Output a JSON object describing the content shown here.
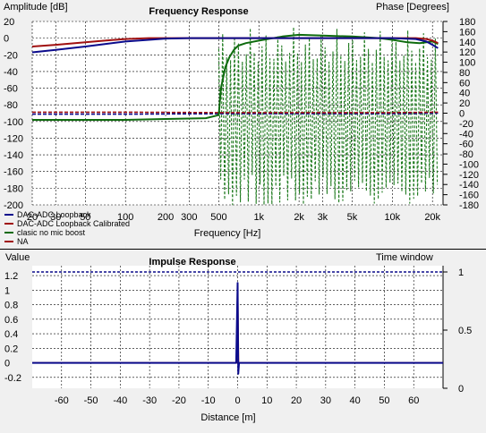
{
  "colors": {
    "background": "#f0f0f0",
    "plot_bg": "#ffffff",
    "grid": "#000000",
    "series_blue": "#0b0b8c",
    "series_red": "#a01010",
    "series_green": "#0e6b0e",
    "series_green_dash": "#1e7a1e",
    "divider": "#000000"
  },
  "chart_data": [
    {
      "type": "line",
      "title": "Frequency Response",
      "ylabel": "Amplitude [dB]",
      "ylabel2": "Phase [Degrees]",
      "xlabel": "Frequency [Hz]",
      "x_scale": "log",
      "xlim": [
        20,
        24000
      ],
      "ylim": [
        -200,
        20
      ],
      "y2lim": [
        -180,
        180
      ],
      "grid": true,
      "legend_position": "bottom-left",
      "x_ticks": [
        20,
        30,
        50,
        100,
        200,
        300,
        500,
        1000,
        2000,
        3000,
        5000,
        10000,
        20000
      ],
      "x_tick_labels": [
        "20",
        "30",
        "50",
        "100",
        "200",
        "300",
        "500",
        "1k",
        "2k",
        "3k",
        "5k",
        "10k",
        "20k"
      ],
      "y_ticks": [
        20,
        0,
        -20,
        -40,
        -60,
        -80,
        -100,
        -120,
        -140,
        -160,
        -180,
        -200
      ],
      "y_tick_labels": [
        "20",
        "0",
        "-20",
        "-40",
        "-60",
        "-80",
        "-100",
        "-120",
        "-140",
        "-160",
        "-180",
        "-200"
      ],
      "y2_ticks": [
        180,
        160,
        140,
        120,
        100,
        80,
        60,
        40,
        20,
        0,
        -20,
        -40,
        -60,
        -80,
        -100,
        -120,
        -140,
        -160,
        -180
      ],
      "y2_tick_labels": [
        "180",
        "160",
        "140",
        "120",
        "100",
        "80",
        "60",
        "40",
        "20",
        "0",
        "-20",
        "-40",
        "-60",
        "-80",
        "-100",
        "-120",
        "-140",
        "-160",
        "-180"
      ],
      "series": [
        {
          "name": "DAC-ADC Loopback",
          "color": "#0b0b8c",
          "amplitude": {
            "x": [
              20,
              30,
              50,
              70,
              100,
              150,
              200,
              300,
              500,
              1000,
              3000,
              10000,
              15000,
              18000,
              20000,
              22000
            ],
            "y": [
              -17,
              -14,
              -10,
              -7,
              -4,
              -2,
              -0.5,
              0,
              0,
              0,
              0,
              0,
              -1,
              -4,
              -8,
              -12
            ]
          },
          "phase": {
            "x": [
              20,
              100,
              500,
              1000,
              10000,
              22000
            ],
            "y": [
              -2,
              -2,
              -1,
              -1,
              -1,
              0
            ]
          }
        },
        {
          "name": "DAC-ADC Loopback Calibrated",
          "color": "#a01010",
          "amplitude": {
            "x": [
              20,
              30,
              50,
              70,
              100,
              150,
              200,
              300,
              1000,
              10000,
              15000,
              18000,
              20000,
              22000
            ],
            "y": [
              -10,
              -8,
              -5,
              -3,
              -1,
              0,
              0,
              0,
              0,
              0,
              0,
              -1,
              -3,
              -6
            ]
          },
          "phase": {
            "x": [
              20,
              100,
              500,
              1000,
              10000,
              22000
            ],
            "y": [
              2,
              2,
              1,
              1,
              1,
              2
            ]
          }
        },
        {
          "name": "clasic no mic boost",
          "color": "#0e6b0e",
          "amplitude": {
            "x": [
              20,
              100,
              200,
              400,
              480,
              500,
              520,
              560,
              600,
              650,
              700,
              800,
              1000,
              1500,
              2000,
              3000,
              5000,
              8000,
              10000,
              13000,
              16000,
              20000,
              22000
            ],
            "y": [
              -98,
              -98,
              -97,
              -96,
              -93,
              -92,
              -60,
              -35,
              -23,
              -14,
              -9,
              -6,
              -3,
              2,
              4,
              3,
              2,
              0,
              -2,
              -5,
              -6,
              -4,
              -7
            ]
          },
          "phase_note": "dense oscillation between -180 and 170 degrees from 500 Hz to 22 kHz"
        },
        {
          "name": "NA",
          "color": "#a01010"
        }
      ]
    },
    {
      "type": "line",
      "title": "Impulse Response",
      "ylabel": "Value",
      "ylabel2": "Time window",
      "xlabel": "Distance [m]",
      "xlim": [
        -70,
        70
      ],
      "ylim": [
        -0.35,
        1.25
      ],
      "y2lim": [
        0,
        1
      ],
      "grid": true,
      "x_ticks": [
        -60,
        -50,
        -40,
        -30,
        -20,
        -10,
        0,
        10,
        20,
        30,
        40,
        50,
        60
      ],
      "x_tick_labels": [
        "-60",
        "-50",
        "-40",
        "-30",
        "-20",
        "-10",
        "0",
        "10",
        "20",
        "30",
        "40",
        "50",
        "60"
      ],
      "y_ticks": [
        1.2,
        1,
        0.8,
        0.6,
        0.4,
        0.2,
        0,
        -0.2
      ],
      "y_tick_labels": [
        "1.2",
        "1",
        "0.8",
        "0.6",
        "0.4",
        "0.2",
        "0",
        "-0.2"
      ],
      "y2_ticks": [
        1,
        0.5,
        0
      ],
      "y2_tick_labels": [
        "1",
        "0.5",
        "0"
      ],
      "series": [
        {
          "name": "DAC-ADC Loopback",
          "color": "#0b0b8c",
          "x": [
            -70,
            -0.5,
            0,
            0.2,
            0.5,
            70
          ],
          "y": [
            0,
            0,
            1.1,
            -0.15,
            0,
            0
          ]
        },
        {
          "name": "DAC-ADC Loopback Calibrated",
          "color": "#a01010",
          "x": [
            -70,
            -0.3,
            0,
            0.3,
            70
          ],
          "y": [
            0,
            0,
            1.05,
            0,
            0
          ]
        },
        {
          "name": "Time window",
          "color": "#0b0b8c",
          "axis": "right",
          "x": [
            -70,
            70
          ],
          "y": [
            1,
            1
          ]
        }
      ]
    }
  ]
}
